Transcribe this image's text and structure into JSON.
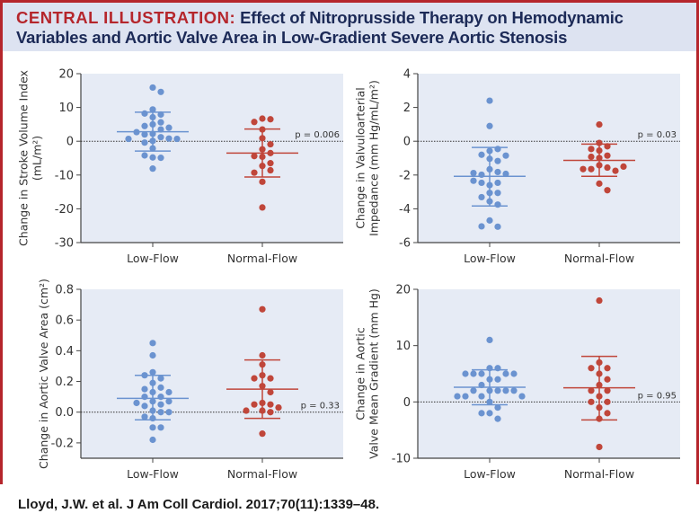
{
  "header": {
    "lead": "CENTRAL ILLUSTRATION:",
    "title": "Effect of Nitroprusside Therapy on Hemodynamic Variables and Aortic Valve Area in Low-Gradient Severe Aortic Stenosis"
  },
  "citation": "Lloyd, J.W. et al. J Am Coll Cardiol. 2017;70(11):1339–48.",
  "colors": {
    "low_flow": "#6b93d0",
    "normal_flow": "#c0463a",
    "plot_bg": "#e6ebf5",
    "accent": "#b5262c",
    "title": "#1c2a57"
  },
  "chart_data": [
    {
      "type": "scatter",
      "ylabel": [
        "Change in Stroke Volume Index",
        "(mL/m²)"
      ],
      "ylim": [
        -30,
        20
      ],
      "yticks": [
        -30,
        -20,
        -10,
        0,
        10,
        20
      ],
      "ytick_labels": [
        "-30",
        "-20",
        "-10",
        "0",
        "10",
        "20"
      ],
      "categories": [
        "Low-Flow",
        "Normal-Flow"
      ],
      "reference_line": 0,
      "p_value": "p = 0.006",
      "series": [
        {
          "values": [
            15.9,
            14.6,
            9.4,
            7.9,
            7.1,
            8.2,
            5.6,
            5.0,
            4.5,
            4.0,
            3.5,
            2.2,
            2.0,
            2.7,
            1.2,
            0.8,
            0.7,
            0.7,
            0.1,
            -0.4,
            -2.1,
            -4.8,
            -4.9,
            -4.2,
            -8.1
          ],
          "mean": 2.8,
          "sd_upper": 8.6,
          "sd_lower": -2.9
        },
        {
          "values": [
            6.7,
            6.5,
            5.7,
            3.5,
            0.9,
            -0.9,
            -2.4,
            -3.5,
            -4.6,
            -4.4,
            -6.5,
            -7.3,
            -8.6,
            -9.3,
            -12.0,
            -19.6
          ],
          "mean": -3.5,
          "sd_upper": 3.6,
          "sd_lower": -10.6
        }
      ]
    },
    {
      "type": "scatter",
      "ylabel": [
        "Change in Valvuloarterial",
        "Impedance (mm Hg/mL/m²)"
      ],
      "ylim": [
        -6,
        4
      ],
      "yticks": [
        -6,
        -4,
        -2,
        0,
        2,
        4
      ],
      "ytick_labels": [
        "-6",
        "-4",
        "-2",
        "0",
        "2",
        "4"
      ],
      "categories": [
        "Low-Flow",
        "Normal-Flow"
      ],
      "reference_line": 0,
      "p_value": "p = 0.03",
      "series": [
        {
          "values": [
            2.4,
            0.9,
            -0.57,
            -0.46,
            -0.8,
            -0.85,
            -1.04,
            -1.17,
            -1.66,
            -1.82,
            -1.98,
            -1.93,
            -1.88,
            -2.6,
            -2.46,
            -2.46,
            -2.34,
            -3.06,
            -3.06,
            -3.31,
            -3.56,
            -3.75,
            -4.69,
            -5.06,
            -5.04
          ],
          "mean": -2.08,
          "sd_upper": -0.37,
          "sd_lower": -3.83
        },
        {
          "values": [
            0.99,
            -0.1,
            -0.3,
            -0.46,
            -0.55,
            -0.85,
            -0.99,
            -0.92,
            -1.42,
            -1.56,
            -1.65,
            -1.75,
            -1.65,
            -1.5,
            -2.51,
            -2.9
          ],
          "mean": -1.13,
          "sd_upper": -0.17,
          "sd_lower": -2.08
        }
      ]
    },
    {
      "type": "scatter",
      "ylabel": [
        "Change in Aortic Valve Area (cm²)"
      ],
      "ylim": [
        -0.3,
        0.8
      ],
      "yticks": [
        -0.2,
        0.0,
        0.2,
        0.4,
        0.6,
        0.8
      ],
      "ytick_labels": [
        "-0.2",
        "0.0",
        "0.2",
        "0.4",
        "0.6",
        "0.8"
      ],
      "categories": [
        "Low-Flow",
        "Normal-Flow"
      ],
      "reference_line": 0,
      "p_value": "p = 0.33",
      "series": [
        {
          "values": [
            0.45,
            0.37,
            0.26,
            0.22,
            0.24,
            0.19,
            0.16,
            0.15,
            0.13,
            0.13,
            0.1,
            0.1,
            0.07,
            0.07,
            0.06,
            0.05,
            0.04,
            0.01,
            0.0,
            0.0,
            -0.03,
            -0.04,
            -0.1,
            -0.1,
            -0.18
          ],
          "mean": 0.09,
          "sd_upper": 0.24,
          "sd_lower": -0.05
        },
        {
          "values": [
            0.67,
            0.37,
            0.31,
            0.24,
            0.22,
            0.22,
            0.17,
            0.13,
            0.06,
            0.05,
            0.05,
            0.03,
            0.01,
            0.01,
            0.0,
            -0.14
          ],
          "mean": 0.15,
          "sd_upper": 0.34,
          "sd_lower": -0.04
        }
      ]
    },
    {
      "type": "scatter",
      "ylabel": [
        "Change in Aortic",
        "Valve Mean Gradient (mm Hg)"
      ],
      "ylim": [
        -10,
        20
      ],
      "yticks": [
        -10,
        0,
        10,
        20
      ],
      "ytick_labels": [
        "-10",
        "0",
        "10",
        "20"
      ],
      "categories": [
        "Low-Flow",
        "Normal-Flow"
      ],
      "reference_line": 0,
      "p_value": "p = 0.95",
      "series": [
        {
          "values": [
            11,
            6,
            6,
            5,
            5,
            5,
            5,
            5,
            4,
            4,
            3,
            2,
            2,
            2,
            2,
            2,
            1,
            1,
            1,
            1,
            0,
            -1,
            -2,
            -2,
            -3
          ],
          "mean": 2.6,
          "sd_upper": 5.7,
          "sd_lower": -0.5
        },
        {
          "values": [
            18,
            7,
            6,
            6,
            5,
            4,
            3,
            2,
            2,
            1,
            0,
            0,
            -1,
            -2,
            -3,
            -8
          ],
          "mean": 2.5,
          "sd_upper": 8.1,
          "sd_lower": -3.2
        }
      ]
    }
  ]
}
